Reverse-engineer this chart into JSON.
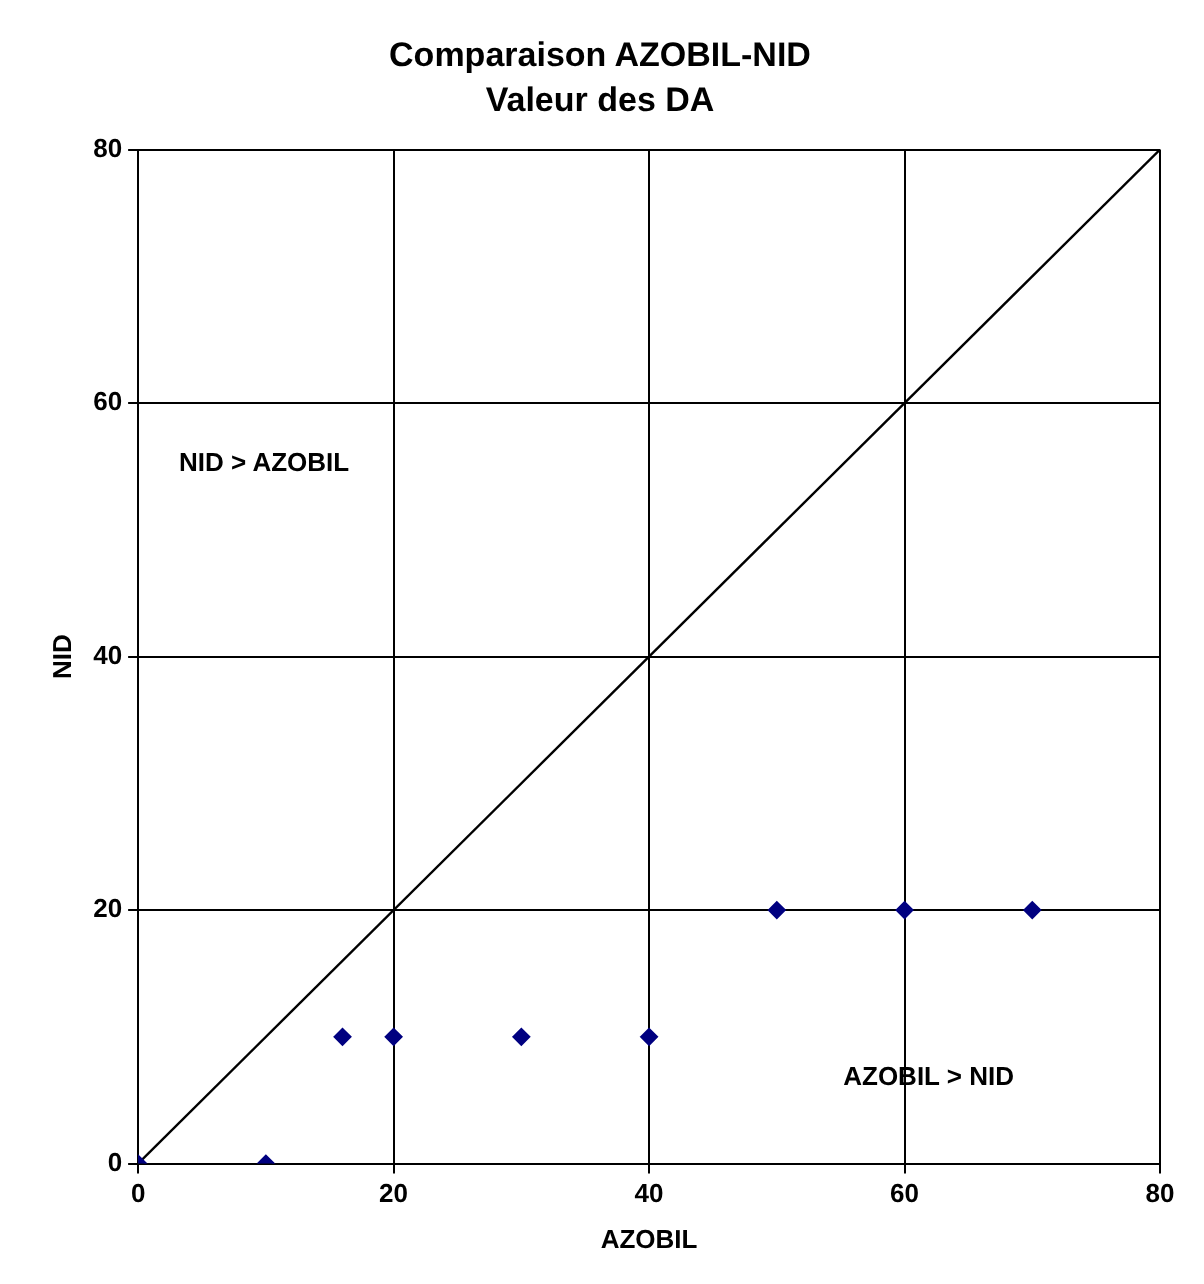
{
  "chart_data": {
    "type": "scatter",
    "title": "Comparaison AZOBIL-NID",
    "subtitle": "Valeur des DA",
    "xlabel": "AZOBIL",
    "ylabel": "NID",
    "series": [
      {
        "color": "#000080",
        "marker": "diamond",
        "x": [
          0,
          10,
          16,
          20,
          30,
          40,
          50,
          60,
          70
        ],
        "values": [
          0,
          0,
          10,
          10,
          10,
          10,
          20,
          20,
          20
        ]
      },
      {
        "type": "line",
        "color": "#000000",
        "marker": "none",
        "line_style": "solid",
        "x": [
          0,
          80
        ],
        "values": [
          0,
          80
        ]
      }
    ],
    "xlim": [
      0,
      80
    ],
    "ylim": [
      0,
      80
    ],
    "xticks": [
      0,
      20,
      40,
      60,
      80
    ],
    "yticks": [
      0,
      20,
      40,
      60,
      80
    ],
    "grid": true,
    "legend": false,
    "annotations": [
      "NID > AZOBIL",
      "AZOBIL > NID"
    ]
  }
}
